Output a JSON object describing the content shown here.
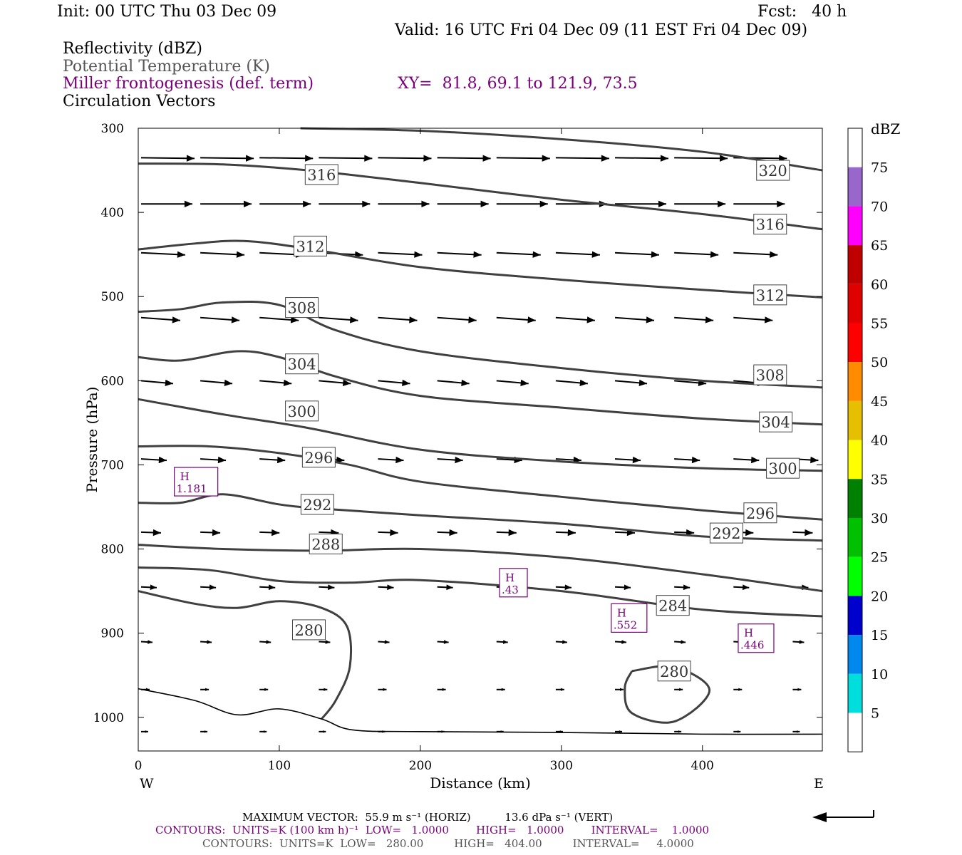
{
  "header": {
    "init": "Init: 00 UTC Thu 03 Dec 09",
    "fcst": "Fcst:   40 h",
    "valid": "Valid: 16 UTC Fri 04 Dec 09 (11 EST Fri 04 Dec 09)",
    "field1": "Reflectivity (dBZ)",
    "field2": "Potential Temperature (K)",
    "field3": "Miller frontogenesis (def. term)",
    "xy": "XY=  81.8, 69.1 to 121.9, 73.5",
    "field4": "Circulation Vectors"
  },
  "colorbar": {
    "title": "dBZ",
    "labels": [
      "75",
      "70",
      "65",
      "60",
      "55",
      "50",
      "45",
      "40",
      "35",
      "30",
      "25",
      "20",
      "15",
      "10",
      "5"
    ],
    "colors": [
      "#ffffff",
      "#9966cc",
      "#ff00ff",
      "#c00000",
      "#e00000",
      "#ff0000",
      "#ff8c00",
      "#e6c000",
      "#ffff00",
      "#008000",
      "#00c000",
      "#00ff00",
      "#0000cc",
      "#0088ee",
      "#00dddd",
      "#ffffff"
    ]
  },
  "footer": {
    "max_vector": "MAXIMUM VECTOR:  55.9 m s⁻¹ (HORIZ)          13.6 dPa s⁻¹ (VERT)",
    "contours1": "CONTOURS:  UNITS=K (100 km h)⁻¹  LOW=   1.0000        HIGH=   1.0000        INTERVAL=    1.0000",
    "contours2": "CONTOURS:  UNITS=K  LOW=   280.00         HIGH=   404.00         INTERVAL=     4.0000"
  },
  "chart_data": {
    "type": "contour",
    "xlabel": "Distance (km)",
    "ylabel": "Pressure (hPa)",
    "xlim": [
      0,
      485
    ],
    "ylim": [
      1040,
      300
    ],
    "x_ticks": [
      0,
      100,
      200,
      300,
      400
    ],
    "y_ticks": [
      300,
      400,
      500,
      600,
      700,
      800,
      900,
      1000
    ],
    "x_end_labels": {
      "left": "W",
      "right": "E"
    },
    "theta_contours": [
      {
        "label": "320",
        "points": [
          [
            115,
            300
          ],
          [
            200,
            303
          ],
          [
            300,
            313
          ],
          [
            400,
            328
          ],
          [
            485,
            350
          ]
        ],
        "label_at": [
          450,
          350
        ]
      },
      {
        "label": "316",
        "points": [
          [
            0,
            342
          ],
          [
            60,
            343
          ],
          [
            120,
            350
          ],
          [
            200,
            365
          ],
          [
            300,
            385
          ],
          [
            400,
            402
          ],
          [
            485,
            420
          ]
        ],
        "label_at": [
          130,
          355
        ],
        "label2_at": [
          448,
          414
        ]
      },
      {
        "label": "312",
        "points": [
          [
            0,
            444
          ],
          [
            40,
            437
          ],
          [
            75,
            434
          ],
          [
            120,
            443
          ],
          [
            200,
            465
          ],
          [
            300,
            480
          ],
          [
            400,
            492
          ],
          [
            485,
            501
          ]
        ],
        "label_at": [
          122,
          440
        ],
        "label2_at": [
          448,
          498
        ]
      },
      {
        "label": "308",
        "points": [
          [
            0,
            518
          ],
          [
            30,
            515
          ],
          [
            60,
            507
          ],
          [
            100,
            510
          ],
          [
            140,
            540
          ],
          [
            200,
            565
          ],
          [
            300,
            585
          ],
          [
            400,
            600
          ],
          [
            485,
            608
          ]
        ],
        "label_at": [
          116,
          513
        ],
        "label2_at": [
          448,
          593
        ]
      },
      {
        "label": "304",
        "points": [
          [
            0,
            572
          ],
          [
            30,
            576
          ],
          [
            70,
            565
          ],
          [
            100,
            572
          ],
          [
            140,
            595
          ],
          [
            200,
            618
          ],
          [
            300,
            632
          ],
          [
            400,
            645
          ],
          [
            485,
            652
          ]
        ],
        "label_at": [
          116,
          580
        ],
        "label2_at": [
          452,
          649
        ]
      },
      {
        "label": "300",
        "points": [
          [
            0,
            622
          ],
          [
            60,
            640
          ],
          [
            120,
            656
          ],
          [
            200,
            682
          ],
          [
            300,
            696
          ],
          [
            400,
            704
          ],
          [
            485,
            707
          ]
        ],
        "label_at": [
          116,
          636
        ],
        "label2_at": [
          457,
          704
        ]
      },
      {
        "label": "296",
        "points": [
          [
            0,
            678
          ],
          [
            50,
            678
          ],
          [
            100,
            686
          ],
          [
            150,
            700
          ],
          [
            200,
            720
          ],
          [
            300,
            738
          ],
          [
            400,
            754
          ],
          [
            485,
            765
          ]
        ],
        "label_at": [
          128,
          691
        ],
        "label2_at": [
          441,
          757
        ]
      },
      {
        "label": "292",
        "points": [
          [
            0,
            745
          ],
          [
            30,
            745
          ],
          [
            60,
            735
          ],
          [
            100,
            747
          ],
          [
            130,
            752
          ],
          [
            200,
            760
          ],
          [
            300,
            770
          ],
          [
            400,
            785
          ],
          [
            485,
            790
          ]
        ],
        "label_at": [
          127,
          747
        ],
        "label2_at": [
          417,
          781
        ]
      },
      {
        "label": "288",
        "points": [
          [
            0,
            795
          ],
          [
            60,
            800
          ],
          [
            130,
            802
          ],
          [
            200,
            800
          ],
          [
            300,
            810
          ],
          [
            400,
            830
          ],
          [
            485,
            850
          ]
        ],
        "label_at": [
          133,
          794
        ]
      },
      {
        "label": "284",
        "points": [
          [
            0,
            822
          ],
          [
            50,
            825
          ],
          [
            100,
            838
          ],
          [
            150,
            840
          ],
          [
            200,
            837
          ],
          [
            300,
            850
          ],
          [
            400,
            872
          ],
          [
            485,
            880
          ]
        ],
        "label_at": [
          379,
          867
        ]
      },
      {
        "label": "280",
        "points": [
          [
            0,
            850
          ],
          [
            40,
            865
          ],
          [
            70,
            870
          ],
          [
            100,
            862
          ],
          [
            130,
            870
          ],
          [
            148,
            892
          ],
          [
            150,
            940
          ],
          [
            140,
            980
          ],
          [
            130,
            1002
          ]
        ],
        "label_at": [
          121,
          896
        ]
      },
      {
        "label": "280",
        "points": [
          [
            350,
            945
          ],
          [
            380,
            940
          ],
          [
            405,
            968
          ],
          [
            380,
            1005
          ],
          [
            350,
            995
          ],
          [
            345,
            965
          ],
          [
            350,
            945
          ]
        ],
        "label_at": [
          380,
          945
        ]
      },
      {
        "label": "",
        "points": [
          [
            0,
            966
          ],
          [
            40,
            980
          ],
          [
            70,
            997
          ],
          [
            100,
            990
          ],
          [
            130,
            1002
          ],
          [
            152,
            1015
          ],
          [
            200,
            1017
          ],
          [
            300,
            1018
          ],
          [
            400,
            1020
          ],
          [
            485,
            1020
          ]
        ]
      }
    ],
    "frontogenesis_maxima": [
      {
        "label": "H",
        "value": "1.181",
        "x": 41,
        "p": 720
      },
      {
        "label": "H",
        "value": ".43",
        "x": 266,
        "p": 840
      },
      {
        "label": "H",
        "value": ".552",
        "x": 348,
        "p": 882
      },
      {
        "label": "H",
        "value": ".446",
        "x": 438,
        "p": 906
      }
    ]
  }
}
